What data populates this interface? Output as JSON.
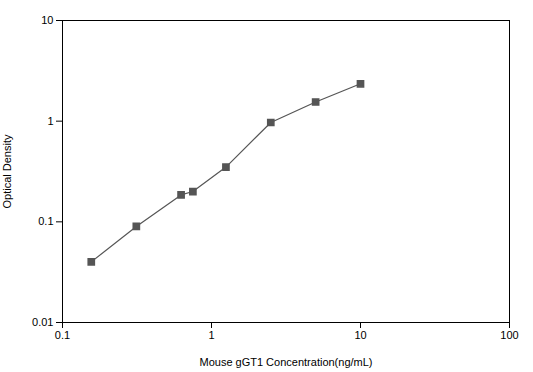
{
  "chart_data": {
    "type": "line",
    "x": [
      0.156,
      0.313,
      0.625,
      0.75,
      1.25,
      2.5,
      5,
      10
    ],
    "values": [
      0.04,
      0.09,
      0.185,
      0.2,
      0.35,
      0.97,
      1.55,
      2.35
    ],
    "xlabel": "Mouse gGT1 Concentration(ng/mL)",
    "ylabel": "Optical Density",
    "log": true,
    "xlim": [
      0.1,
      100
    ],
    "ylim": [
      0.01,
      10
    ],
    "xticks": [
      0.1,
      1,
      10,
      100
    ],
    "yticks": [
      0.01,
      0.1,
      1,
      10
    ],
    "color": "#555555",
    "marker": "square",
    "grid": false
  }
}
